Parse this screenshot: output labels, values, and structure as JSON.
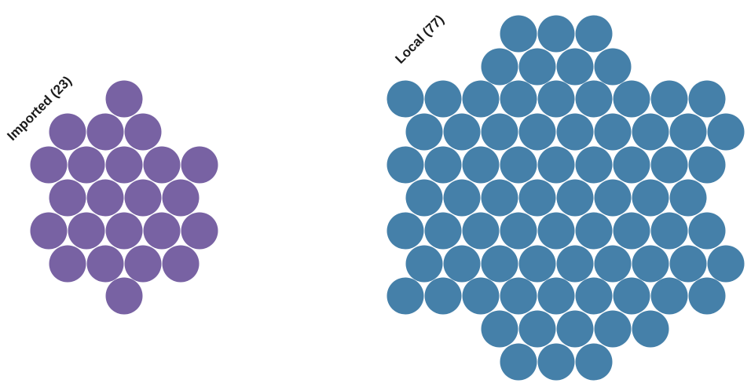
{
  "chart_data": {
    "type": "unit",
    "groups": [
      {
        "label": "Imported (23)",
        "name": "Imported",
        "count": 23,
        "color": "#7862a3"
      },
      {
        "label": "Local (77)",
        "name": "Local",
        "count": 77,
        "color": "#4580a9"
      }
    ]
  }
}
